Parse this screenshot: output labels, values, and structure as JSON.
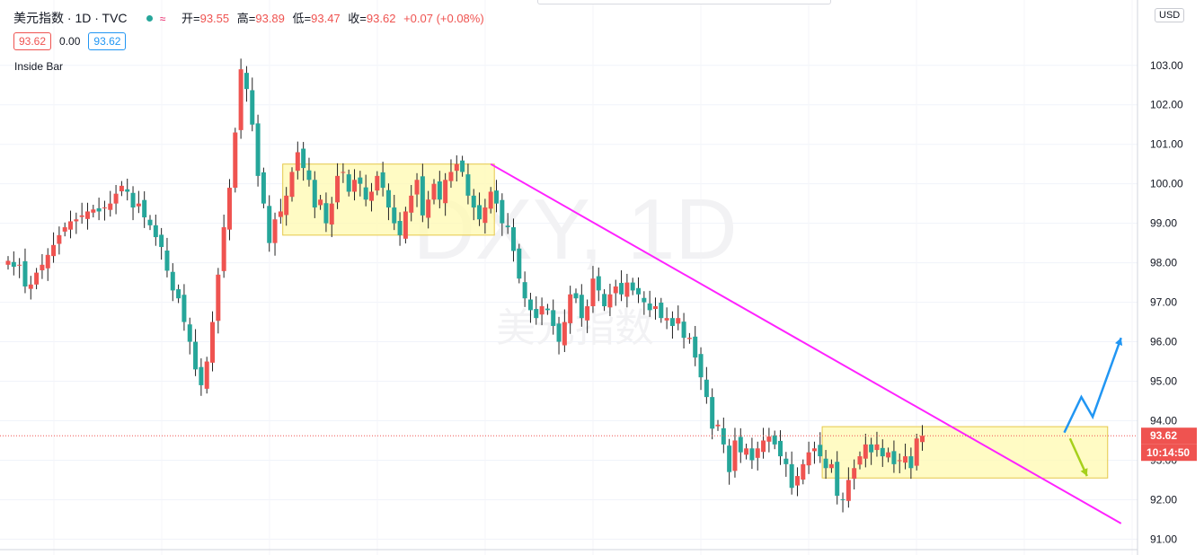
{
  "header": {
    "symbol": "美元指数 · 1D · TVC",
    "icon_wave": "≈",
    "open_label": "开=",
    "open": "93.55",
    "high_label": "高=",
    "high": "93.89",
    "low_label": "低=",
    "low": "93.47",
    "close_label": "收=",
    "close": "93.62",
    "change": "+0.07 (+0.08%)"
  },
  "values_row": {
    "bid": "93.62",
    "spread": "0.00",
    "ask": "93.62"
  },
  "study_name": "Inside Bar",
  "currency": "USD",
  "watermark": {
    "symbol": "DXY, 1D",
    "name": "美元指数"
  },
  "price_label": "93.62",
  "countdown_label": "10:14:50",
  "colors": {
    "up": "#ef5350",
    "down": "#26a69a",
    "box_fill": "#fff9b0",
    "box_stroke": "#e6c84a",
    "trendline": "#ff22ff",
    "arrow_up": "#2196f3",
    "arrow_down": "#a6d01a",
    "current_price": "#ef5350"
  },
  "chart_data": {
    "type": "candlestick",
    "yaxis_ticks": [
      91.0,
      92.0,
      93.0,
      94.0,
      95.0,
      96.0,
      97.0,
      98.0,
      99.0,
      100.0,
      101.0,
      102.0,
      103.0
    ],
    "ylim": [
      90.6,
      104.2
    ],
    "current_price": 93.62,
    "closes": [
      98.05,
      97.9,
      97.95,
      97.4,
      97.45,
      97.75,
      97.95,
      98.2,
      98.45,
      98.7,
      98.9,
      99.05,
      99.1,
      99.2,
      99.3,
      99.35,
      99.3,
      99.4,
      99.5,
      99.75,
      99.95,
      99.8,
      99.4,
      99.5,
      99.15,
      98.95,
      98.65,
      98.4,
      97.8,
      97.3,
      97.1,
      96.5,
      96.0,
      95.3,
      94.9,
      95.5,
      96.5,
      97.7,
      98.9,
      99.9,
      101.3,
      102.9,
      102.4,
      101.5,
      100.2,
      99.5,
      98.5,
      99.1,
      99.3,
      99.7,
      100.3,
      100.8,
      100.4,
      100.1,
      99.4,
      99.6,
      99.0,
      99.5,
      100.2,
      100.3,
      99.8,
      100.1,
      100.0,
      99.6,
      99.8,
      100.2,
      99.9,
      99.4,
      99.0,
      98.7,
      99.3,
      99.7,
      100.1,
      99.2,
      99.6,
      100.0,
      99.6,
      100.1,
      100.3,
      100.5,
      100.3,
      99.7,
      99.4,
      99.1,
      99.4,
      99.8,
      99.5,
      99.0,
      98.9,
      98.3,
      97.6,
      97.1,
      96.8,
      96.6,
      96.9,
      96.8,
      96.4,
      96.0,
      96.5,
      97.2,
      97.1,
      96.6,
      96.9,
      97.6,
      97.3,
      96.9,
      97.2,
      97.4,
      97.2,
      97.5,
      97.3,
      97.2,
      97.0,
      96.8,
      96.9,
      96.6,
      96.6,
      96.4,
      96.6,
      96.1,
      96.1,
      95.6,
      95.1,
      94.6,
      93.8,
      93.9,
      93.4,
      92.7,
      93.5,
      93.2,
      93.3,
      93.0,
      93.3,
      93.5,
      93.6,
      93.4,
      93.1,
      92.9,
      92.3,
      92.6,
      92.9,
      93.2,
      93.3,
      93.1,
      92.8,
      92.9,
      92.1,
      92.0,
      92.5,
      92.8,
      93.1,
      93.4,
      93.2,
      93.4,
      93.1,
      93.2,
      92.9,
      93.0,
      93.1,
      92.8,
      93.55,
      93.62
    ]
  },
  "drawings": {
    "box1": {
      "t1": 49,
      "t2": 85,
      "p1": 100.5,
      "p2": 98.7
    },
    "box2": {
      "t1": 144,
      "t2": 193,
      "p1": 93.85,
      "p2": 92.55
    },
    "trendline": {
      "t1": 85,
      "p1": 100.5,
      "t2": 196,
      "p2": 91.4
    },
    "arrow_up_path": [
      [
        186,
        93.7
      ],
      [
        189,
        94.6
      ],
      [
        191,
        94.1
      ],
      [
        196,
        96.1
      ]
    ],
    "arrow_down_path": [
      [
        187,
        93.55
      ],
      [
        190,
        92.6
      ]
    ]
  }
}
